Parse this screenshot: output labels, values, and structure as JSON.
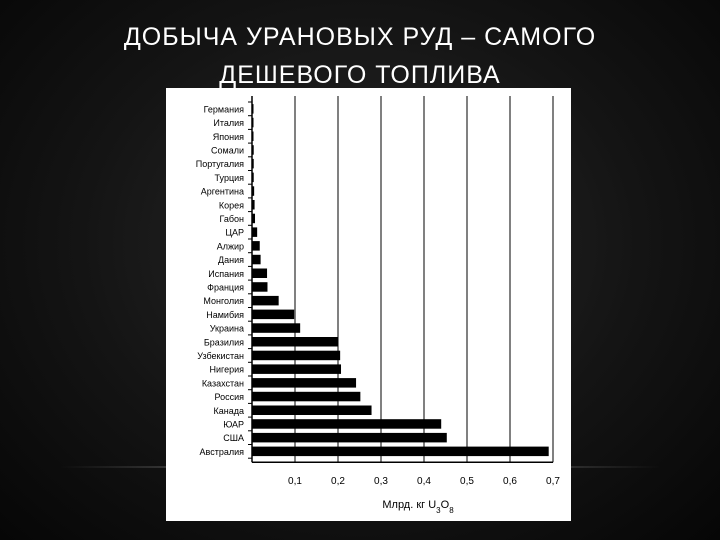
{
  "slide": {
    "title_line1": "ДОБЫЧА УРАНОВЫХ РУД – САМОГО",
    "title_line2": "ДЕШЕВОГО ТОПЛИВА"
  },
  "chart_data": {
    "type": "bar",
    "orientation": "horizontal",
    "title": "",
    "xlabel": "Млрд. кг U3O8",
    "ylabel": "",
    "xlim": [
      0,
      0.7
    ],
    "x_ticks": [
      "0,1",
      "0,2",
      "0,3",
      "0,4",
      "0,5",
      "0,6",
      "0,7"
    ],
    "grid": "vertical",
    "bar_color": "#000000",
    "categories": [
      "Германия",
      "Италия",
      "Япония",
      "Сомали",
      "Португалия",
      "Турция",
      "Аргентина",
      "Корея",
      "Габон",
      "ЦАР",
      "Алжир",
      "Дания",
      "Испания",
      "Франция",
      "Монголия",
      "Намибия",
      "Украина",
      "Бразилия",
      "Узбекистан",
      "Нигерия",
      "Казахстан",
      "Россия",
      "Канада",
      "ЮАР",
      "США",
      "Австралия"
    ],
    "values": [
      0.003,
      0.003,
      0.003,
      0.004,
      0.004,
      0.004,
      0.005,
      0.006,
      0.007,
      0.012,
      0.018,
      0.02,
      0.035,
      0.036,
      0.062,
      0.098,
      0.112,
      0.2,
      0.205,
      0.207,
      0.242,
      0.252,
      0.278,
      0.44,
      0.453,
      0.69
    ]
  }
}
